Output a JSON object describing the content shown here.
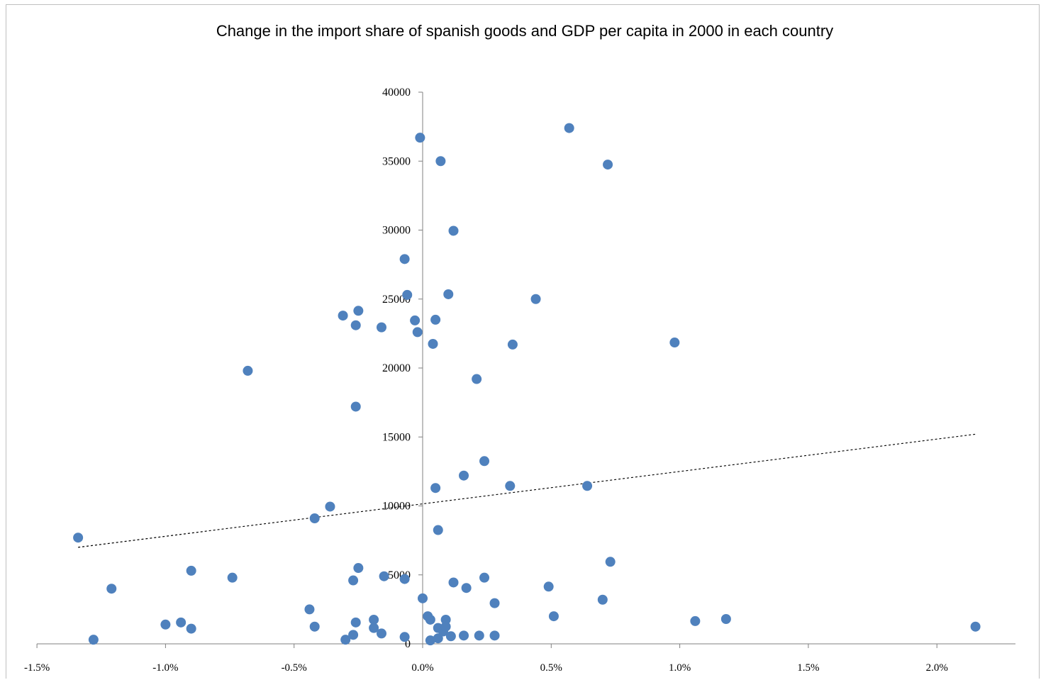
{
  "chart_data": {
    "type": "scatter",
    "title": "Change in the import share of spanish goods and GDP  per capita in 2000 in each country",
    "xlabel": "",
    "ylabel": "",
    "xlim": [
      -0.015,
      0.023
    ],
    "ylim": [
      0,
      40000
    ],
    "x_ticks": [
      -0.015,
      -0.01,
      -0.005,
      0.0,
      0.005,
      0.01,
      0.015,
      0.02
    ],
    "x_tick_labels": [
      "-1.5%",
      "-1.0%",
      "-0.5%",
      "0.0%",
      "0.5%",
      "1.0%",
      "1.5%",
      "2.0%"
    ],
    "y_ticks": [
      0,
      5000,
      10000,
      15000,
      20000,
      25000,
      30000,
      35000,
      40000
    ],
    "y_tick_labels": [
      "0",
      "5000",
      "10000",
      "15000",
      "20000",
      "25000",
      "30000",
      "35000",
      "40000"
    ],
    "grid": false,
    "legend": "none",
    "marker_color": "#4f81bd",
    "trendline": {
      "style": "dotted",
      "color": "#000000",
      "x": [
        -0.0134,
        0.0215
      ],
      "y": [
        7000,
        15200
      ]
    },
    "points": [
      {
        "x": -0.0134,
        "y": 7700
      },
      {
        "x": -0.0128,
        "y": 300
      },
      {
        "x": -0.0121,
        "y": 4000
      },
      {
        "x": -0.01,
        "y": 1400
      },
      {
        "x": -0.0094,
        "y": 1550
      },
      {
        "x": -0.009,
        "y": 5300
      },
      {
        "x": -0.009,
        "y": 1100
      },
      {
        "x": -0.0074,
        "y": 4800
      },
      {
        "x": -0.0068,
        "y": 19800
      },
      {
        "x": -0.0044,
        "y": 2500
      },
      {
        "x": -0.0042,
        "y": 1250
      },
      {
        "x": -0.0042,
        "y": 9100
      },
      {
        "x": -0.0036,
        "y": 9950
      },
      {
        "x": -0.0031,
        "y": 23800
      },
      {
        "x": -0.003,
        "y": 300
      },
      {
        "x": -0.0027,
        "y": 4600
      },
      {
        "x": -0.0027,
        "y": 650
      },
      {
        "x": -0.0026,
        "y": 23100
      },
      {
        "x": -0.0026,
        "y": 17200
      },
      {
        "x": -0.0026,
        "y": 1550
      },
      {
        "x": -0.0025,
        "y": 24150
      },
      {
        "x": -0.0025,
        "y": 5500
      },
      {
        "x": -0.0019,
        "y": 1750
      },
      {
        "x": -0.0019,
        "y": 1150
      },
      {
        "x": -0.0016,
        "y": 750
      },
      {
        "x": -0.0016,
        "y": 22950
      },
      {
        "x": -0.0015,
        "y": 4900
      },
      {
        "x": -0.0007,
        "y": 27900
      },
      {
        "x": -0.0007,
        "y": 4700
      },
      {
        "x": -0.0007,
        "y": 500
      },
      {
        "x": -0.0006,
        "y": 25300
      },
      {
        "x": -0.0003,
        "y": 23450
      },
      {
        "x": -0.0002,
        "y": 22600
      },
      {
        "x": -0.0001,
        "y": 36700
      },
      {
        "x": -0.0,
        "y": 3300
      },
      {
        "x": 0.0002,
        "y": 2000
      },
      {
        "x": 0.0003,
        "y": 1750
      },
      {
        "x": 0.0003,
        "y": 250
      },
      {
        "x": 0.0004,
        "y": 21750
      },
      {
        "x": 0.0005,
        "y": 23500
      },
      {
        "x": 0.0005,
        "y": 11300
      },
      {
        "x": 0.0006,
        "y": 1150
      },
      {
        "x": 0.0006,
        "y": 8250
      },
      {
        "x": 0.0006,
        "y": 400
      },
      {
        "x": 0.0007,
        "y": 35000
      },
      {
        "x": 0.0008,
        "y": 900
      },
      {
        "x": 0.0009,
        "y": 1750
      },
      {
        "x": 0.0009,
        "y": 1250
      },
      {
        "x": 0.001,
        "y": 25350
      },
      {
        "x": 0.0011,
        "y": 550
      },
      {
        "x": 0.0012,
        "y": 4450
      },
      {
        "x": 0.0012,
        "y": 29950
      },
      {
        "x": 0.0016,
        "y": 12200
      },
      {
        "x": 0.0016,
        "y": 600
      },
      {
        "x": 0.0017,
        "y": 4050
      },
      {
        "x": 0.0021,
        "y": 19200
      },
      {
        "x": 0.0022,
        "y": 600
      },
      {
        "x": 0.0024,
        "y": 13250
      },
      {
        "x": 0.0024,
        "y": 4800
      },
      {
        "x": 0.0028,
        "y": 600
      },
      {
        "x": 0.0028,
        "y": 2950
      },
      {
        "x": 0.0034,
        "y": 11450
      },
      {
        "x": 0.0035,
        "y": 21700
      },
      {
        "x": 0.0044,
        "y": 25000
      },
      {
        "x": 0.0049,
        "y": 4150
      },
      {
        "x": 0.0051,
        "y": 2000
      },
      {
        "x": 0.0057,
        "y": 37400
      },
      {
        "x": 0.0064,
        "y": 11450
      },
      {
        "x": 0.007,
        "y": 3200
      },
      {
        "x": 0.0072,
        "y": 34750
      },
      {
        "x": 0.0073,
        "y": 5950
      },
      {
        "x": 0.0098,
        "y": 21850
      },
      {
        "x": 0.0106,
        "y": 1650
      },
      {
        "x": 0.0118,
        "y": 1800
      },
      {
        "x": 0.0215,
        "y": 1250
      }
    ]
  }
}
